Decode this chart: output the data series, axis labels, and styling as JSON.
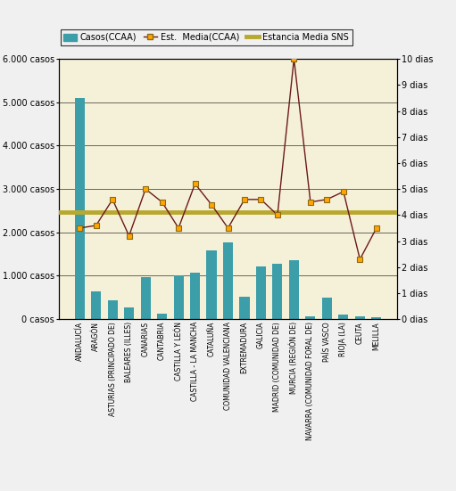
{
  "categories": [
    "ANDALUCÍA",
    "ARAGÓN",
    "ASTURIAS (PRINCIPADO DE)",
    "BALEARES (ILLES)",
    "CANARIAS",
    "CANTABRIA",
    "CASTILLA Y LEÓN",
    "CASTILLA - LA MANCHA",
    "CATALUÑA",
    "COMUNIDAD VALENCIANA",
    "EXTREMADURA",
    "GALICIA",
    "MADRID (COMUNIDAD DE)",
    "MURCIA (REGIÓN DE)",
    "NAVARRA (COMUNIDAD FORAL DE)",
    "PAÍS VASCO",
    "RIOJA (LA)",
    "CEUTA",
    "MELILLA"
  ],
  "casos": [
    5100,
    650,
    430,
    270,
    960,
    120,
    1020,
    1070,
    1580,
    1780,
    520,
    1220,
    1270,
    1360,
    60,
    490,
    100,
    60,
    50
  ],
  "estancia_media": [
    3.5,
    3.6,
    4.6,
    3.2,
    5.0,
    4.5,
    3.5,
    5.2,
    4.4,
    3.5,
    4.6,
    4.6,
    4.0,
    10.0,
    4.5,
    4.6,
    4.9,
    2.3,
    3.5
  ],
  "estancia_sns": 4.1,
  "bar_color": "#3b9ea8",
  "line_color": "#6b1a1a",
  "marker_color": "#ffa500",
  "marker_edge_color": "#8b6914",
  "sns_line_color": "#b8a830",
  "background_color": "#f5f0d8",
  "fig_background_color": "#f0f0f0",
  "ylim_left": [
    0,
    6000
  ],
  "ylim_right": [
    0,
    10
  ],
  "yticks_left": [
    0,
    1000,
    2000,
    3000,
    4000,
    5000,
    6000
  ],
  "ytick_labels_left": [
    "0 casos",
    "1.000 casos",
    "2.000 casos",
    "3.000 casos",
    "4.000 casos",
    "5.000 casos",
    "6.000 casos"
  ],
  "yticks_right": [
    0,
    1,
    2,
    3,
    4,
    5,
    6,
    7,
    8,
    9,
    10
  ],
  "ytick_labels_right": [
    "0 dias",
    "1 dias",
    "2 dias",
    "3 dias",
    "4 dias",
    "5 dias",
    "6 dias",
    "7 dias",
    "8 dias",
    "9 dias",
    "10 dias"
  ],
  "legend_bar_label": "Casos(CCAA)",
  "legend_line_label": "Est.  Media(CCAA)",
  "legend_sns_label": "Estancia Media SNS"
}
